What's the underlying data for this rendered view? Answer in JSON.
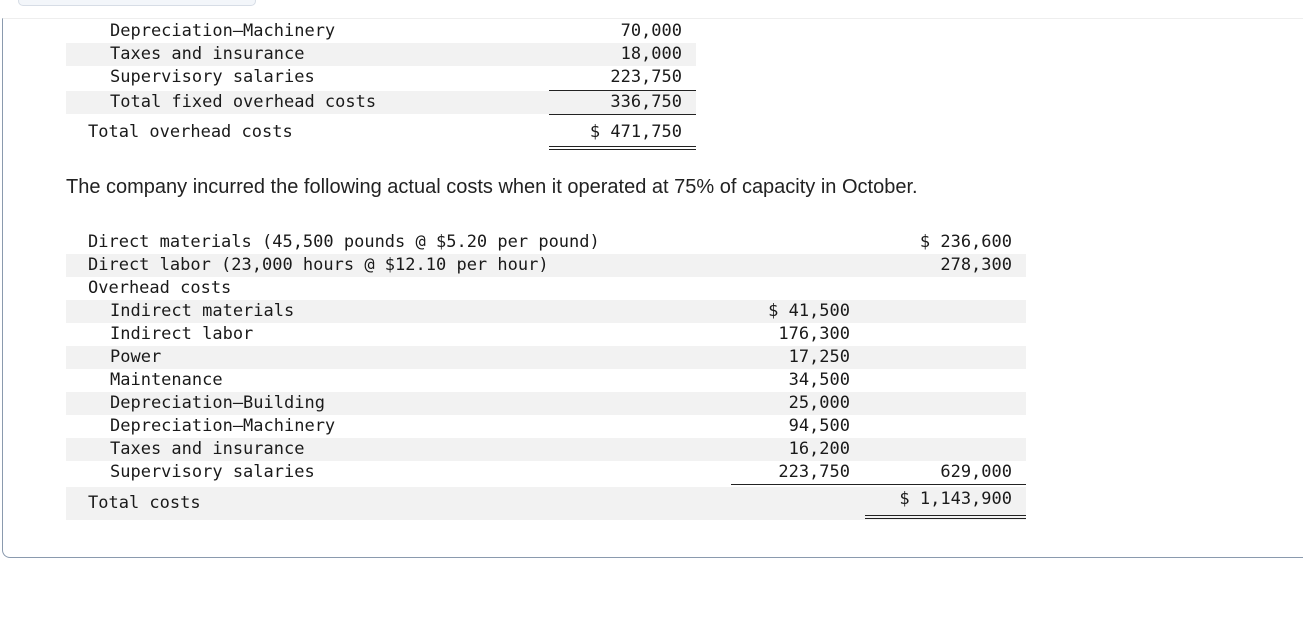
{
  "budget_tail": {
    "rows": [
      {
        "label": "Depreciation—Machinery",
        "value": "70,000"
      },
      {
        "label": "Taxes and insurance",
        "value": "18,000"
      },
      {
        "label": "Supervisory salaries",
        "value": "223,750"
      },
      {
        "label": "Total fixed overhead costs",
        "value": "336,750"
      }
    ],
    "total": {
      "label": "Total overhead costs",
      "value": "$ 471,750"
    }
  },
  "intro_text": "The company incurred the following actual costs when it operated at 75% of capacity in October.",
  "actual": {
    "direct_materials": {
      "label": "Direct materials (45,500 pounds @ $5.20 per pound)",
      "value": "$ 236,600"
    },
    "direct_labor": {
      "label": "Direct labor (23,000 hours @ $12.10 per hour)",
      "value": "278,300"
    },
    "overhead_heading": "Overhead costs",
    "overhead_items": [
      {
        "label": "Indirect materials",
        "value": "$ 41,500"
      },
      {
        "label": "Indirect labor",
        "value": "176,300"
      },
      {
        "label": "Power",
        "value": "17,250"
      },
      {
        "label": "Maintenance",
        "value": "34,500"
      },
      {
        "label": "Depreciation—Building",
        "value": "25,000"
      },
      {
        "label": "Depreciation—Machinery",
        "value": "94,500"
      },
      {
        "label": "Taxes and insurance",
        "value": "16,200"
      },
      {
        "label": "Supervisory salaries",
        "value": "223,750"
      }
    ],
    "overhead_total": "629,000",
    "total": {
      "label": "Total costs",
      "value": "$ 1,143,900"
    }
  }
}
